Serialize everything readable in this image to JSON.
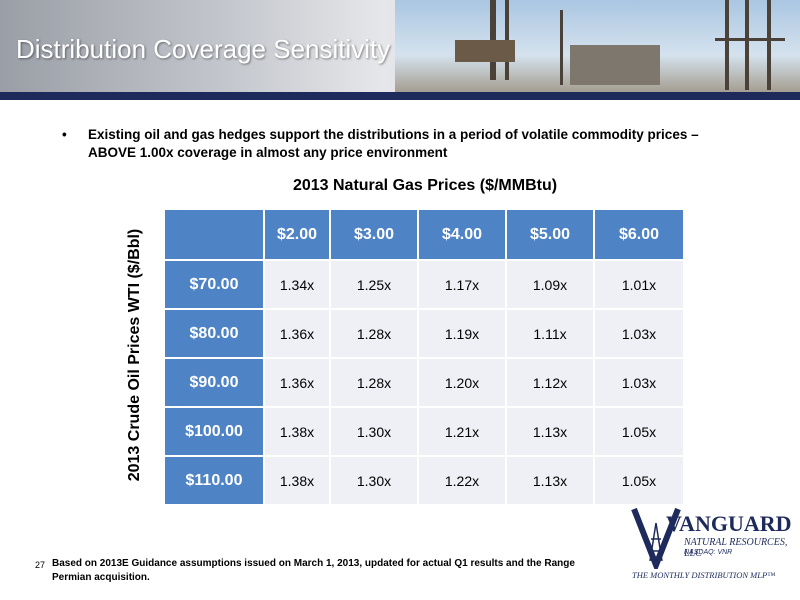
{
  "header": {
    "title": "Distribution Coverage Sensitivity"
  },
  "bullet": {
    "text": "Existing oil and gas hedges support the distributions in a period of volatile commodity prices – ABOVE 1.00x coverage in almost any price environment"
  },
  "table": {
    "title": "2013 Natural Gas Prices ($/MMBtu)",
    "row_axis_label": "2013 Crude Oil Prices WTI ($/Bbl)",
    "columns": [
      "$2.00",
      "$3.00",
      "$4.00",
      "$5.00",
      "$6.00"
    ],
    "rows": [
      {
        "label": "$70.00",
        "values": [
          "1.34x",
          "1.25x",
          "1.17x",
          "1.09x",
          "1.01x"
        ]
      },
      {
        "label": "$80.00",
        "values": [
          "1.36x",
          "1.28x",
          "1.19x",
          "1.11x",
          "1.03x"
        ]
      },
      {
        "label": "$90.00",
        "values": [
          "1.36x",
          "1.28x",
          "1.20x",
          "1.12x",
          "1.03x"
        ]
      },
      {
        "label": "$100.00",
        "values": [
          "1.38x",
          "1.30x",
          "1.21x",
          "1.13x",
          "1.05x"
        ]
      },
      {
        "label": "$110.00",
        "values": [
          "1.38x",
          "1.30x",
          "1.22x",
          "1.13x",
          "1.05x"
        ]
      }
    ]
  },
  "logo": {
    "name": "VANGUARD",
    "subtitle": "NATURAL RESOURCES, LLC",
    "ticker": "NASDAQ: VNR",
    "tagline": "THE MONTHLY DISTRIBUTION MLP™"
  },
  "footer": {
    "page_number": "27",
    "note": "Based on 2013E Guidance assumptions issued on March 1, 2013, updated for actual Q1 results and the Range Permian acquisition."
  },
  "colors": {
    "header_bar": "#1d2a5b",
    "table_header": "#4e83c6",
    "table_cell": "#eef0f5"
  }
}
